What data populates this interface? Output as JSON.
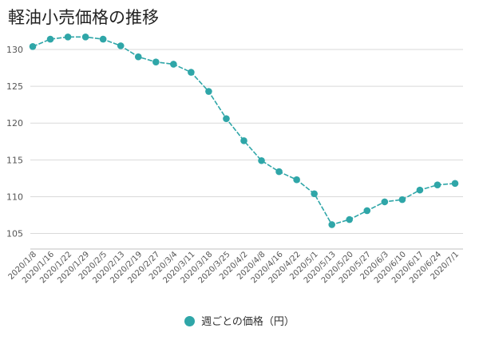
{
  "chart_data": {
    "type": "line",
    "title": "軽油小売価格の推移",
    "categories": [
      "2020/1/8",
      "2020/1/16",
      "2020/1/22",
      "2020/1/29",
      "2020/2/5",
      "2020/2/13",
      "2020/2/19",
      "2020/2/27",
      "2020/3/4",
      "2020/3/11",
      "2020/3/18",
      "2020/3/25",
      "2020/4/2",
      "2020/4/8",
      "2020/4/16",
      "2020/4/22",
      "2020/5/1",
      "2020/5/13",
      "2020/5/20",
      "2020/5/27",
      "2020/6/3",
      "2020/6/10",
      "2020/6/17",
      "2020/6/24",
      "2020/7/1"
    ],
    "series": [
      {
        "name": "週ごとの価格（円）",
        "values": [
          130.4,
          131.4,
          131.7,
          131.7,
          131.4,
          130.5,
          129.0,
          128.3,
          128.0,
          126.9,
          124.3,
          120.6,
          117.6,
          114.9,
          113.4,
          112.3,
          110.4,
          106.2,
          106.9,
          108.1,
          109.3,
          109.6,
          110.9,
          111.6,
          111.8
        ]
      }
    ],
    "yticks": [
      105,
      110,
      115,
      120,
      125,
      130
    ],
    "ylim": [
      103,
      132.6
    ],
    "grid": true,
    "legend_position": "bottom"
  },
  "colors": {
    "series": "#2fa6a8",
    "grid": "#d9d9d9",
    "axis": "#bfbfbf"
  }
}
